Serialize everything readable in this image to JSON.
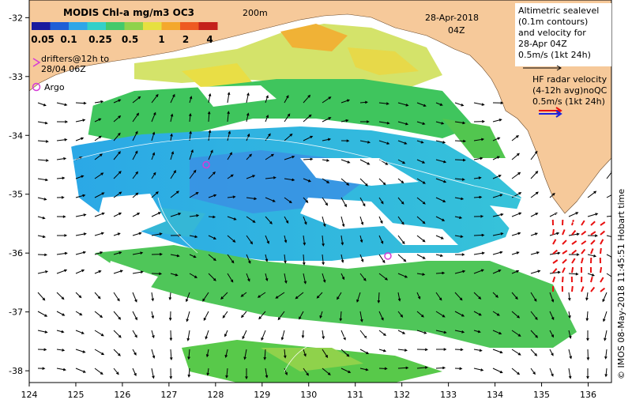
{
  "map": {
    "title": "MODIS Chl-a mg/m3 OC3",
    "isobath_label": "200m",
    "date": "28-Apr-2018",
    "time": "04Z",
    "colorbar_ticks": [
      "0.05",
      "0.1",
      "0.25",
      "0.5",
      "1",
      "2",
      "4"
    ],
    "colorbar_colors": [
      "#1a1a9e",
      "#1f5fd6",
      "#2fa6e8",
      "#33d0c9",
      "#43c96b",
      "#8fd24b",
      "#e6e040",
      "#f4a82c",
      "#ee5a22",
      "#c4211b"
    ],
    "legend": {
      "drifters_line1": "drifters@12h to",
      "drifters_line2": "28/04 06Z",
      "argo": "Argo",
      "altimetry_lines": [
        "Altimetric sealevel",
        "(0.1m contours)",
        "and velocity for",
        "28-Apr 04Z",
        "0.5m/s (1kt 24h)"
      ],
      "hf_lines": [
        "HF radar velocity",
        "(4-12h avg)noQC",
        "0.5m/s (1kt 24h)"
      ]
    },
    "x_ticks": [
      "124",
      "125",
      "126",
      "127",
      "128",
      "129",
      "130",
      "131",
      "132",
      "133",
      "134",
      "135",
      "136"
    ],
    "y_ticks": [
      "-32",
      "-33",
      "-34",
      "-35",
      "-36",
      "-37",
      "-38"
    ],
    "credit": "© IMOS 08-May-2018 11:45:51 Hobart time",
    "argo_floats": [
      {
        "lon": 127.8,
        "lat": -34.5
      },
      {
        "lon": 131.7,
        "lat": -36.05
      }
    ],
    "colors": {
      "land": "#f6c99a",
      "argo": "#d63bd6",
      "hf_arrow": "#1a24e0",
      "hf_red": "#e81010"
    }
  }
}
